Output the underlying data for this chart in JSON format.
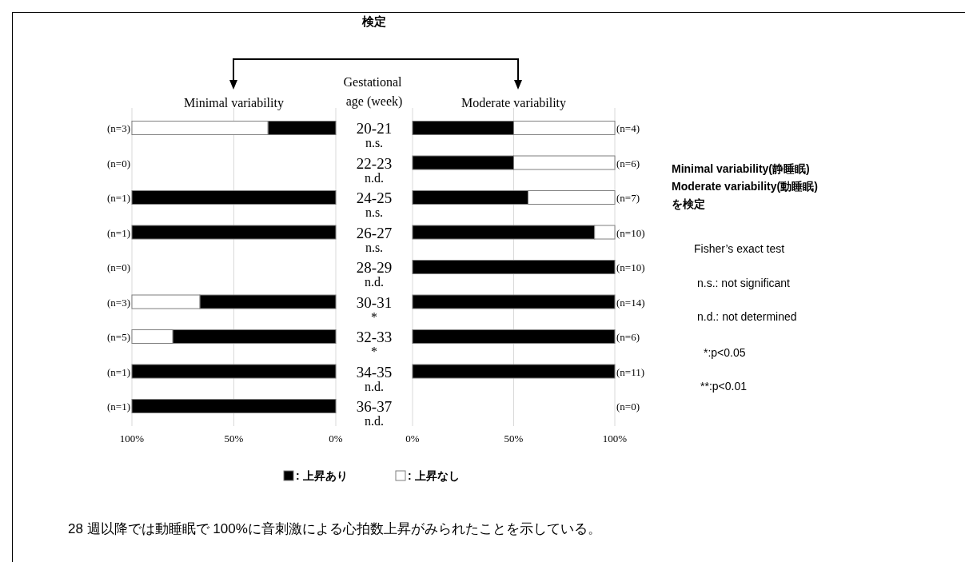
{
  "chart_data": [
    {
      "type": "bar",
      "orientation": "horizontal",
      "stacked": true,
      "title": "Minimal variability",
      "ylabel": "Gestational age (week)",
      "categories": [
        "20-21",
        "22-23",
        "24-25",
        "26-27",
        "28-29",
        "30-31",
        "32-33",
        "34-35",
        "36-37"
      ],
      "series": [
        {
          "name": ": 上昇あり",
          "color": "#000000",
          "values": [
            33.3,
            null,
            100,
            100,
            null,
            66.7,
            80,
            100,
            100
          ]
        },
        {
          "name": ": 上昇なし",
          "color": "#ffffff",
          "values": [
            66.7,
            null,
            0,
            0,
            null,
            33.3,
            20,
            0,
            0
          ]
        }
      ],
      "xlim": [
        100,
        0
      ],
      "xticks": [
        {
          "value": 100,
          "label": "100%"
        },
        {
          "value": 50,
          "label": "50%"
        },
        {
          "value": 0,
          "label": "0%"
        }
      ],
      "grid": "x",
      "legend": "bottom",
      "annotations": [
        "検定",
        "28 週以降では動睡眠で 100%に音刺激による心拍数上昇がみられたことを示している。",
        "(n=3)",
        "(n=0)",
        "(n=1)",
        "(n=1)",
        "(n=0)",
        "(n=3)",
        "(n=5)",
        "(n=1)",
        "(n=1)",
        "n.s.",
        "n.d.",
        "n.s.",
        "n.s.",
        "n.d.",
        "*",
        "*",
        "n.d.",
        "n.d."
      ]
    },
    {
      "type": "bar",
      "orientation": "horizontal",
      "stacked": true,
      "title": "Moderate variability",
      "tick_labels": "x",
      "categories": [
        "20-21",
        "22-23",
        "24-25",
        "26-27",
        "28-29",
        "30-31",
        "32-33",
        "34-35",
        "36-37"
      ],
      "series": [
        {
          "color": "#000000",
          "values": [
            50,
            50,
            57.1,
            90,
            100,
            100,
            100,
            100,
            null
          ]
        },
        {
          "color": "#ffffff",
          "values": [
            50,
            50,
            42.9,
            10,
            0,
            0,
            0,
            0,
            null
          ]
        }
      ],
      "xlim": [
        0,
        100
      ],
      "xticks": [
        {
          "value": 0,
          "label": "0%"
        },
        {
          "value": 50,
          "label": "50%"
        },
        {
          "value": 100,
          "label": "100%"
        }
      ],
      "grid": "x",
      "annotations": [
        "Minimal variability(静睡眠)",
        "Moderate variability(動睡眠)",
        "を検定",
        "Fisher’s exact test",
        "n.s.: not significant",
        "n.d.: not determined",
        "*:p<0.05",
        "**:p<0.01",
        "(n=4)",
        "(n=6)",
        "(n=7)",
        "(n=10)",
        "(n=10)",
        "(n=14)",
        "(n=6)",
        "(n=11)",
        "(n=0)"
      ]
    }
  ]
}
